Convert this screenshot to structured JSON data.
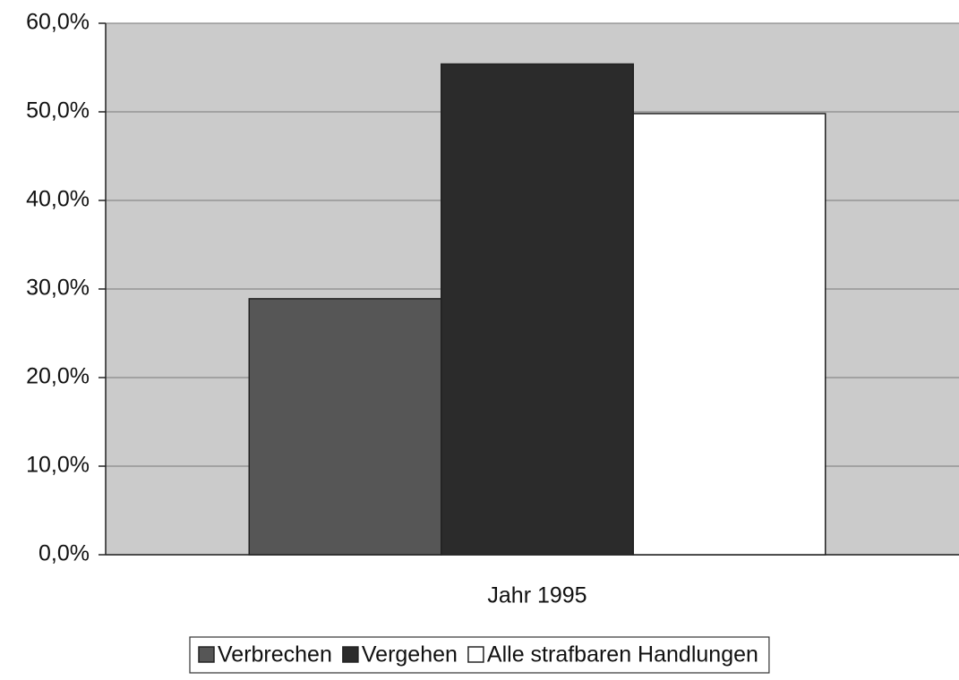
{
  "chart_data": {
    "type": "bar",
    "categories": [
      "Jahr 1995"
    ],
    "series": [
      {
        "name": "Verbrechen",
        "color": "#565656",
        "values": [
          28.9
        ]
      },
      {
        "name": "Vergehen",
        "color": "#2b2b2b",
        "values": [
          55.4
        ]
      },
      {
        "name": "Alle strafbaren Handlungen",
        "color": "#ffffff",
        "values": [
          49.8
        ]
      }
    ],
    "ylim": [
      0,
      60
    ],
    "yticks": [
      {
        "value": 0,
        "label": "0,0%"
      },
      {
        "value": 10,
        "label": "10,0%"
      },
      {
        "value": 20,
        "label": "20,0%"
      },
      {
        "value": 30,
        "label": "30,0%"
      },
      {
        "value": 40,
        "label": "40,0%"
      },
      {
        "value": 50,
        "label": "50,0%"
      },
      {
        "value": 60,
        "label": "60,0%"
      }
    ],
    "grid": true
  }
}
